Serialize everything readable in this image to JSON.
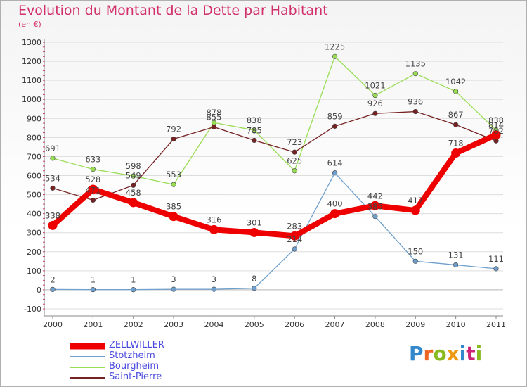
{
  "title": "Evolution du Montant de la Dette par Habitant",
  "subtitle": "(en €)",
  "logo_text": "Proxiti",
  "colors": {
    "title": "#d2306a",
    "zellwiller": "#ee0000",
    "stotzheim": "#6f9fcc",
    "bourgheim": "#99dd55",
    "saint_pierre": "#772222",
    "legend_text": "#4a4adf"
  },
  "chart_data": {
    "type": "line",
    "title": "Evolution du Montant de la Dette par Habitant",
    "ylabel": "(en €)",
    "x": [
      "2000",
      "2001",
      "2002",
      "2003",
      "2004",
      "2005",
      "2006",
      "2007",
      "2008",
      "2009",
      "2010",
      "2011"
    ],
    "ylim": [
      -100,
      1300
    ],
    "yticks": [
      "-100",
      "0",
      "100",
      "200",
      "300",
      "400",
      "500",
      "600",
      "700",
      "800",
      "900",
      "1000",
      "1100",
      "1200",
      "1300"
    ],
    "grid": "horizontal",
    "legend": "bottom-left",
    "series": [
      {
        "name": "ZELLWILLER",
        "key": "zellwiller",
        "values": [
          338,
          528,
          458,
          385,
          316,
          301,
          283,
          400,
          442,
          417,
          718,
          814
        ],
        "labels": [
          "338",
          "528",
          "458",
          "385",
          "316",
          "301",
          "283",
          "400",
          "442",
          "417",
          "718",
          "814"
        ]
      },
      {
        "name": "Stotzheim",
        "key": "stotzheim",
        "values": [
          2,
          1,
          1,
          3,
          3,
          8,
          214,
          614,
          385,
          150,
          131,
          111
        ],
        "labels": [
          "2",
          "1",
          "1",
          "3",
          "3",
          "8",
          "214",
          "614",
          "385",
          "150",
          "131",
          "111"
        ]
      },
      {
        "name": "Bourgheim",
        "key": "bourgheim",
        "values": [
          691,
          633,
          598,
          553,
          878,
          838,
          625,
          1225,
          1021,
          1135,
          1042,
          838
        ],
        "labels": [
          "691",
          "633",
          "598",
          "553",
          "878",
          "838",
          "625",
          "1225",
          "1021",
          "1135",
          "1042",
          "838"
        ]
      },
      {
        "name": "Saint-Pierre",
        "key": "saint_pierre",
        "values": [
          534,
          471,
          549,
          792,
          855,
          785,
          723,
          859,
          926,
          936,
          867,
          782
        ],
        "labels": [
          "534",
          "471",
          "549",
          "792",
          "855",
          "785",
          "723",
          "859",
          "926",
          "936",
          "867",
          "782"
        ]
      }
    ]
  }
}
